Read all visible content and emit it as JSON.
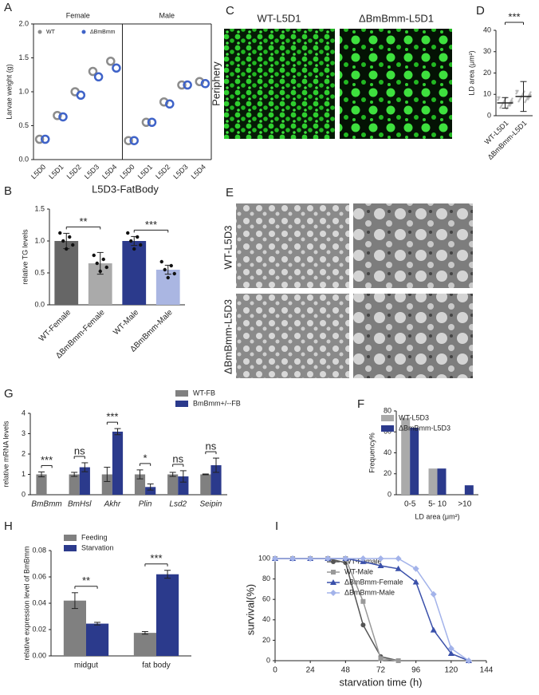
{
  "image_panels": [
    {
      "label": "C",
      "row_label": "Periphery",
      "titles": [
        "WT-L5D1",
        "ΔBmBmm-L5D1"
      ]
    },
    {
      "label": "E",
      "row_labels": [
        "WT-L5D3",
        "ΔBmBmm-L5D3"
      ]
    }
  ],
  "chart_data": [
    {
      "type": "strip",
      "label": "A",
      "ylabel": "Larvae weight (g)",
      "facets": [
        "Female",
        "Male"
      ],
      "categories": [
        "L5D0",
        "L5D1",
        "L5D2",
        "L5D3",
        "L5D4"
      ],
      "series": [
        {
          "name": "WT",
          "color": "#8c8c8c",
          "values": [
            [
              0.3,
              0.65,
              1.0,
              1.3,
              1.45
            ],
            [
              0.28,
              0.55,
              0.85,
              1.1,
              1.15
            ]
          ]
        },
        {
          "name": "ΔBmBmm",
          "color": "#3f63c8",
          "values": [
            [
              0.3,
              0.63,
              0.95,
              1.22,
              1.35
            ],
            [
              0.28,
              0.55,
              0.82,
              1.1,
              1.12
            ]
          ]
        }
      ],
      "ylim": [
        0,
        2
      ],
      "yticks": [
        {
          "value": 0,
          "label": "0.0"
        },
        0.5,
        {
          "value": 1,
          "label": "1.0"
        },
        1.5,
        {
          "value": 2,
          "label": "2.0"
        }
      ]
    },
    {
      "type": "strip",
      "label": "D",
      "ylabel": "LD area (μm²)",
      "categories": [
        "WT-L5D1",
        "ΔBmBmm-L5D1"
      ],
      "series": [
        {
          "color": "#8c8c8c",
          "values": [
            6,
            9
          ],
          "errors": [
            2.5,
            7
          ]
        }
      ],
      "annotations": [
        "***"
      ],
      "ylim": [
        0,
        40
      ],
      "yticks": [
        0,
        10,
        20,
        30,
        40
      ]
    },
    {
      "type": "bar",
      "label": "B",
      "title": "L5D3-FatBody",
      "ylabel": "relative TG levels",
      "categories": [
        "WT-Female",
        "ΔBmBmm-Female",
        "WT-Male",
        "ΔBmBmm-Male"
      ],
      "values": [
        1.0,
        0.65,
        1.0,
        0.55
      ],
      "errors": [
        0.12,
        0.17,
        0.07,
        0.07
      ],
      "colors": [
        "#666666",
        "#aaaaaa",
        "#2b3a8c",
        "#aab6e2"
      ],
      "annotations": [
        "**",
        "***"
      ],
      "ylim": [
        0,
        1.5
      ],
      "yticks": [
        {
          "value": 0,
          "label": "0.0"
        },
        0.5,
        {
          "value": 1,
          "label": "1.0"
        },
        1.5
      ]
    },
    {
      "type": "grouped-bar",
      "label": "G",
      "ylabel": "relative mRNA levels",
      "categories": [
        "BmBmm",
        "BmHsl",
        "Akhr",
        "Plin",
        "Lsd2",
        "Seipin"
      ],
      "series": [
        {
          "name": "WT-FB",
          "color": "#808080",
          "values": [
            1.0,
            1.0,
            1.0,
            1.0,
            1.0,
            1.0
          ],
          "errors": [
            0.12,
            0.1,
            0.35,
            0.22,
            0.1,
            0.02
          ]
        },
        {
          "name": "BmBmm+/--FB",
          "color": "#2b3a8c",
          "values": [
            0,
            1.35,
            3.1,
            0.38,
            0.9,
            1.45
          ],
          "errors": [
            0,
            0.22,
            0.15,
            0.15,
            0.28,
            0.35
          ]
        }
      ],
      "annotations": [
        "***",
        "ns",
        "***",
        "*",
        "ns",
        "ns"
      ],
      "ylim": [
        0,
        4
      ],
      "yticks": [
        0,
        1,
        2,
        3,
        4
      ]
    },
    {
      "type": "grouped-bar",
      "label": "F",
      "ylabel": "Frequency%",
      "xlabel": "LD area (μm²)",
      "categories": [
        "0-5",
        "5- 10",
        ">10"
      ],
      "series": [
        {
          "name": "WT-L5D3",
          "color": "#aaaaaa",
          "values": [
            73,
            25,
            0
          ]
        },
        {
          "name": "ΔBmBmm-L5D3",
          "color": "#2b3a8c",
          "values": [
            64,
            25,
            9
          ]
        }
      ],
      "ylim": [
        0,
        80
      ],
      "yticks": [
        0,
        20,
        40,
        60,
        80
      ]
    },
    {
      "type": "grouped-bar",
      "label": "H",
      "ylabel": "relative  expression level of BmBmm",
      "categories": [
        "midgut",
        "fat body"
      ],
      "series": [
        {
          "name": "Feeding",
          "color": "#808080",
          "values": [
            0.042,
            0.0175
          ],
          "errors": [
            0.006,
            0.001
          ]
        },
        {
          "name": "Starvation",
          "color": "#2b3a8c",
          "values": [
            0.0245,
            0.062
          ],
          "errors": [
            0.001,
            0.003
          ]
        }
      ],
      "annotations": [
        "**",
        "***"
      ],
      "ylim": [
        0,
        0.08
      ],
      "yticks": [
        {
          "value": 0,
          "label": "0.00"
        },
        0.02,
        0.04,
        0.06,
        0.08
      ]
    },
    {
      "type": "line",
      "label": "I",
      "ylabel": "survival(%)",
      "xlabel": "starvation time (h)",
      "series": [
        {
          "name": "WT-Female",
          "color": "#555555",
          "marker": "circle",
          "x": [
            0,
            12,
            24,
            36,
            48,
            60,
            72,
            84
          ],
          "values": [
            100,
            100,
            100,
            100,
            96,
            35,
            4,
            0
          ]
        },
        {
          "name": "WT-Male",
          "color": "#999999",
          "marker": "square",
          "x": [
            0,
            12,
            24,
            36,
            48,
            60,
            72,
            84
          ],
          "values": [
            100,
            100,
            100,
            100,
            100,
            58,
            2,
            0
          ]
        },
        {
          "name": "ΔBmBmm-Female",
          "color": "#3a50aa",
          "marker": "triangle",
          "x": [
            0,
            12,
            24,
            36,
            48,
            60,
            72,
            84,
            96,
            108,
            120,
            132
          ],
          "values": [
            100,
            100,
            100,
            100,
            100,
            97,
            93,
            90,
            77,
            30,
            7,
            0
          ]
        },
        {
          "name": "ΔBmBmm-Male",
          "color": "#a3b3ea",
          "marker": "diamond",
          "x": [
            0,
            12,
            24,
            36,
            48,
            60,
            72,
            84,
            96,
            108,
            120,
            132
          ],
          "values": [
            100,
            100,
            100,
            100,
            100,
            100,
            100,
            100,
            90,
            65,
            12,
            0
          ]
        }
      ],
      "xlim": [
        0,
        144
      ],
      "xticks": [
        0,
        24,
        48,
        72,
        96,
        120,
        144
      ],
      "ylim": [
        0,
        100
      ],
      "yticks": [
        0,
        20,
        40,
        60,
        80,
        100
      ]
    }
  ]
}
